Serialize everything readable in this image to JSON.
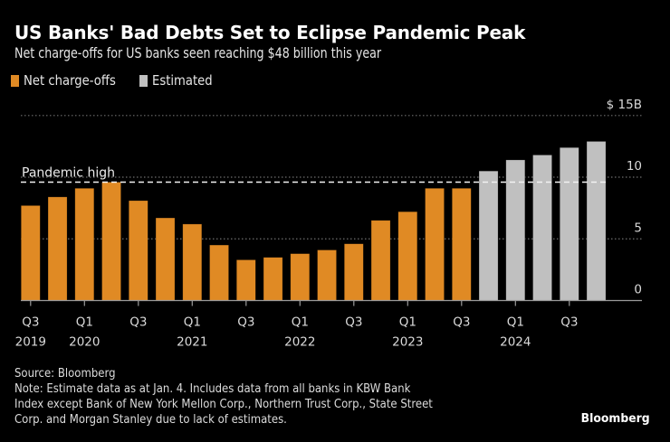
{
  "header": {
    "title": "US Banks' Bad Debts Set to Eclipse Pandemic Peak",
    "subtitle": "Net charge-offs for US banks seen reaching $48 billion this year"
  },
  "legend": [
    {
      "label": "Net charge-offs",
      "color": "#e08a24"
    },
    {
      "label": "Estimated",
      "color": "#c0c0c0"
    }
  ],
  "chart_data": {
    "type": "bar",
    "title": "US Banks' Bad Debts Set to Eclipse Pandemic Peak",
    "subtitle": "Net charge-offs for US banks seen reaching $48 billion this year",
    "xlabel": "",
    "ylabel": "",
    "y_unit_label": "$ 15B",
    "ylim": [
      0,
      15
    ],
    "yticks": [
      0,
      5,
      10,
      15
    ],
    "ytick_labels": [
      "0",
      "5",
      "10",
      "$ 15B"
    ],
    "y_axis_position": "right",
    "grid": true,
    "legend_position": "top-left",
    "categories": [
      "Q3 2019",
      "Q4 2019",
      "Q1 2020",
      "Q2 2020",
      "Q3 2020",
      "Q4 2020",
      "Q1 2021",
      "Q2 2021",
      "Q3 2021",
      "Q4 2021",
      "Q1 2022",
      "Q2 2022",
      "Q3 2022",
      "Q4 2022",
      "Q1 2023",
      "Q2 2023",
      "Q3 2023",
      "Q4 2023",
      "Q1 2024",
      "Q2 2024",
      "Q3 2024",
      "Q4 2024"
    ],
    "x_tick_labels": [
      {
        "index": 0,
        "quarter": "Q3",
        "year": "2019"
      },
      {
        "index": 2,
        "quarter": "Q1",
        "year": "2020"
      },
      {
        "index": 4,
        "quarter": "Q3",
        "year": ""
      },
      {
        "index": 6,
        "quarter": "Q1",
        "year": "2021"
      },
      {
        "index": 8,
        "quarter": "Q3",
        "year": ""
      },
      {
        "index": 10,
        "quarter": "Q1",
        "year": "2022"
      },
      {
        "index": 12,
        "quarter": "Q3",
        "year": ""
      },
      {
        "index": 14,
        "quarter": "Q1",
        "year": "2023"
      },
      {
        "index": 16,
        "quarter": "Q3",
        "year": ""
      },
      {
        "index": 18,
        "quarter": "Q1",
        "year": "2024"
      },
      {
        "index": 20,
        "quarter": "Q3",
        "year": ""
      }
    ],
    "series": [
      {
        "name": "Net charge-offs",
        "color": "#e08a24",
        "values": [
          7.7,
          8.4,
          9.1,
          9.6,
          8.1,
          6.7,
          6.2,
          4.5,
          3.3,
          3.5,
          3.8,
          4.1,
          4.6,
          6.5,
          7.2,
          9.1,
          9.1,
          null,
          null,
          null,
          null,
          null
        ]
      },
      {
        "name": "Estimated",
        "color": "#c0c0c0",
        "values": [
          null,
          null,
          null,
          null,
          null,
          null,
          null,
          null,
          null,
          null,
          null,
          null,
          null,
          null,
          null,
          null,
          null,
          10.5,
          11.4,
          11.8,
          12.4,
          12.9
        ]
      }
    ],
    "annotations": [
      {
        "type": "hline",
        "label": "Pandemic high",
        "value": 9.6,
        "style": "dashed"
      }
    ]
  },
  "footer": {
    "source": "Source: Bloomberg",
    "note": "Note: Estimate data as at Jan. 4. Includes data from all banks in KBW Bank\nIndex except Bank of New York Mellon Corp., Northern Trust Corp., State Street\nCorp. and Morgan Stanley due to lack of estimates.",
    "brand": "Bloomberg"
  }
}
